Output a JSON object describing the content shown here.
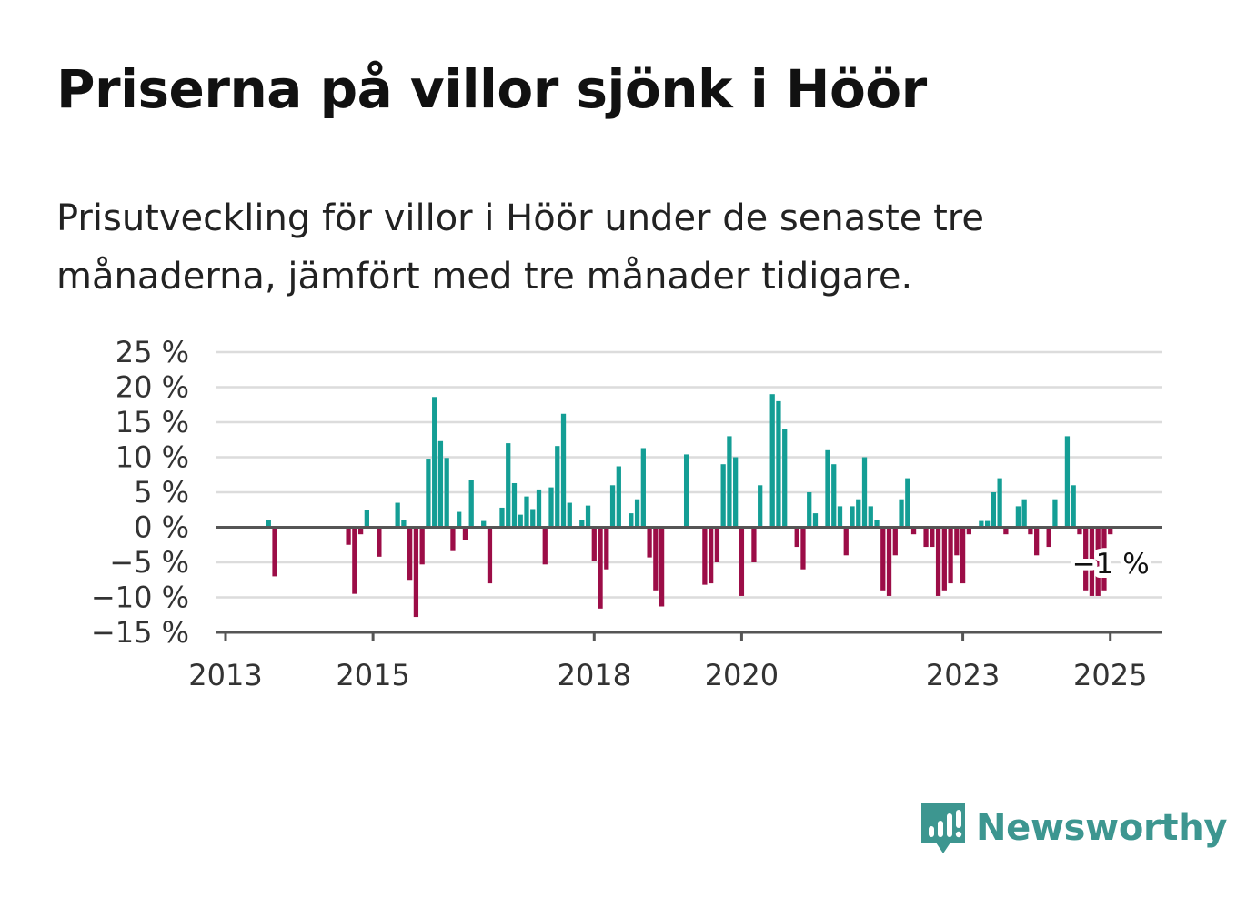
{
  "title": "Priserna på villor sjönk i Höör",
  "subtitle": "Prisutveckling för villor i Höör under de senaste tre månaderna, jämfört med tre månader tidigare.",
  "brand": "Newsworthy",
  "colors": {
    "positive": "#149e95",
    "negative": "#9c0d47",
    "grid": "#dcdcdc",
    "axis": "#555555",
    "brand": "#3d9690"
  },
  "chart_data": {
    "type": "bar",
    "ylim": [
      -15,
      25
    ],
    "y_ticks": [
      -15,
      -10,
      -5,
      0,
      5,
      10,
      15,
      20,
      25
    ],
    "y_tick_labels": [
      "−15 %",
      "−10 %",
      "−5 %",
      "0 %",
      "5 %",
      "10 %",
      "15 %",
      "20 %",
      "25 %"
    ],
    "x_ticks": [
      "2013",
      "2015",
      "2018",
      "2020",
      "2023",
      "2025"
    ],
    "xlim": [
      "2013-01",
      "2025-08"
    ],
    "grid": true,
    "legend": "none",
    "last_value_label": "−1 %",
    "series": [
      {
        "points": [
          [
            "2013-08",
            1
          ],
          [
            "2013-09",
            -7
          ],
          [
            "2014-09",
            -2.5
          ],
          [
            "2014-10",
            -9.5
          ],
          [
            "2014-11",
            -1
          ],
          [
            "2014-12",
            2.5
          ],
          [
            "2015-02",
            -4.2
          ],
          [
            "2015-05",
            3.5
          ],
          [
            "2015-06",
            1
          ],
          [
            "2015-07",
            -7.5
          ],
          [
            "2015-08",
            -12.8
          ],
          [
            "2015-09",
            -5.3
          ],
          [
            "2015-10",
            9.8
          ],
          [
            "2015-11",
            18.6
          ],
          [
            "2015-12",
            12.3
          ],
          [
            "2016-01",
            9.9
          ],
          [
            "2016-02",
            -3.4
          ],
          [
            "2016-03",
            2.2
          ],
          [
            "2016-04",
            -1.8
          ],
          [
            "2016-05",
            6.7
          ],
          [
            "2016-07",
            0.9
          ],
          [
            "2016-08",
            -8
          ],
          [
            "2016-10",
            2.8
          ],
          [
            "2016-11",
            12
          ],
          [
            "2016-12",
            6.3
          ],
          [
            "2017-01",
            1.8
          ],
          [
            "2017-02",
            4.4
          ],
          [
            "2017-03",
            2.6
          ],
          [
            "2017-04",
            5.4
          ],
          [
            "2017-05",
            -5.3
          ],
          [
            "2017-06",
            5.7
          ],
          [
            "2017-07",
            11.6
          ],
          [
            "2017-08",
            16.2
          ],
          [
            "2017-09",
            3.5
          ],
          [
            "2017-11",
            1.1
          ],
          [
            "2017-12",
            3.1
          ],
          [
            "2018-01",
            -4.8
          ],
          [
            "2018-02",
            -11.6
          ],
          [
            "2018-03",
            -6
          ],
          [
            "2018-04",
            6
          ],
          [
            "2018-05",
            8.7
          ],
          [
            "2018-07",
            2
          ],
          [
            "2018-08",
            4
          ],
          [
            "2018-09",
            11.3
          ],
          [
            "2018-10",
            -4.3
          ],
          [
            "2018-11",
            -9
          ],
          [
            "2018-12",
            -11.3
          ],
          [
            "2019-04",
            10.4
          ],
          [
            "2019-07",
            -8.2
          ],
          [
            "2019-08",
            -8
          ],
          [
            "2019-09",
            -5
          ],
          [
            "2019-10",
            9
          ],
          [
            "2019-11",
            13
          ],
          [
            "2019-12",
            10
          ],
          [
            "2020-01",
            -9.8
          ],
          [
            "2020-03",
            -5
          ],
          [
            "2020-04",
            6
          ],
          [
            "2020-06",
            19
          ],
          [
            "2020-07",
            18
          ],
          [
            "2020-08",
            14
          ],
          [
            "2020-10",
            -2.8
          ],
          [
            "2020-11",
            -6
          ],
          [
            "2020-12",
            5
          ],
          [
            "2021-01",
            2
          ],
          [
            "2021-03",
            11
          ],
          [
            "2021-04",
            9
          ],
          [
            "2021-05",
            3
          ],
          [
            "2021-06",
            -4
          ],
          [
            "2021-07",
            3
          ],
          [
            "2021-08",
            4
          ],
          [
            "2021-09",
            10
          ],
          [
            "2021-10",
            3
          ],
          [
            "2021-11",
            1
          ],
          [
            "2021-12",
            -9
          ],
          [
            "2022-01",
            -9.8
          ],
          [
            "2022-02",
            -4
          ],
          [
            "2022-03",
            4
          ],
          [
            "2022-04",
            7
          ],
          [
            "2022-05",
            -1
          ],
          [
            "2022-07",
            -2.8
          ],
          [
            "2022-08",
            -2.8
          ],
          [
            "2022-09",
            -9.8
          ],
          [
            "2022-10",
            -9
          ],
          [
            "2022-11",
            -8
          ],
          [
            "2022-12",
            -4
          ],
          [
            "2023-01",
            -8
          ],
          [
            "2023-02",
            -1
          ],
          [
            "2023-04",
            0.9
          ],
          [
            "2023-05",
            0.9
          ],
          [
            "2023-06",
            5
          ],
          [
            "2023-07",
            7
          ],
          [
            "2023-08",
            -1
          ],
          [
            "2023-10",
            3
          ],
          [
            "2023-11",
            4
          ],
          [
            "2023-12",
            -1
          ],
          [
            "2024-01",
            -4
          ],
          [
            "2024-03",
            -2.8
          ],
          [
            "2024-04",
            4
          ],
          [
            "2024-06",
            13
          ],
          [
            "2024-07",
            6
          ],
          [
            "2024-08",
            -1
          ],
          [
            "2024-09",
            -9
          ],
          [
            "2024-10",
            -9.8
          ],
          [
            "2024-11",
            -9.8
          ],
          [
            "2024-12",
            -9
          ],
          [
            "2025-01",
            -1
          ]
        ]
      }
    ]
  }
}
